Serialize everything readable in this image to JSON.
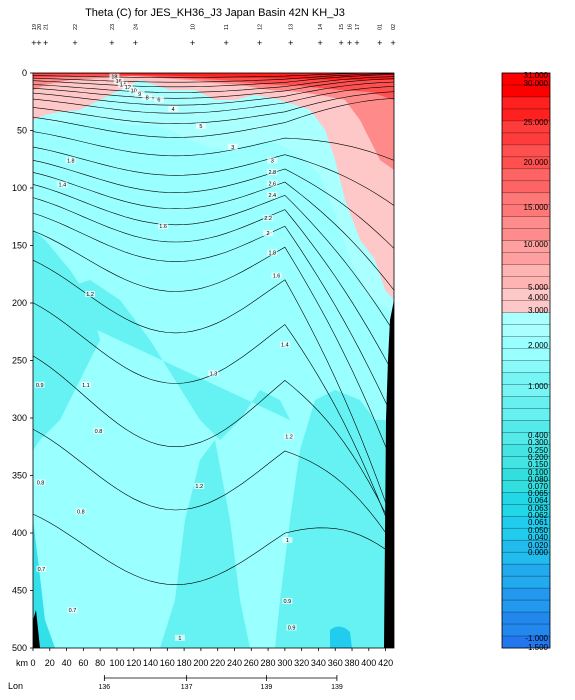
{
  "chart_data": {
    "type": "heatmap",
    "title": "Theta (C) for JES_KH36_J3 Japan Basin 42N KH_J3",
    "xlabel": "km",
    "x2label": "Lon",
    "ylim": [
      0,
      500
    ],
    "xlim": [
      0,
      430
    ],
    "yticks": [
      0,
      50,
      100,
      150,
      200,
      250,
      300,
      350,
      400,
      450,
      500
    ],
    "xticks": [
      0,
      20,
      40,
      60,
      80,
      100,
      120,
      140,
      160,
      180,
      200,
      220,
      240,
      260,
      280,
      300,
      320,
      340,
      360,
      380,
      400,
      420
    ],
    "lon_ticks": [
      {
        "km": 85,
        "label": "136"
      },
      {
        "km": 183,
        "label": "137"
      },
      {
        "km": 278,
        "label": "139"
      },
      {
        "km": 362,
        "label": "139"
      }
    ],
    "stations": [
      {
        "km": 1,
        "label": "19"
      },
      {
        "km": 7,
        "label": "20"
      },
      {
        "km": 15,
        "label": "21"
      },
      {
        "km": 50,
        "label": "22"
      },
      {
        "km": 94,
        "label": "23"
      },
      {
        "km": 122,
        "label": "24"
      },
      {
        "km": 190,
        "label": "10"
      },
      {
        "km": 230,
        "label": "11"
      },
      {
        "km": 270,
        "label": "12"
      },
      {
        "km": 307,
        "label": "13"
      },
      {
        "km": 342,
        "label": "14"
      },
      {
        "km": 367,
        "label": "15"
      },
      {
        "km": 377,
        "label": "16"
      },
      {
        "km": 386,
        "label": "17"
      },
      {
        "km": 413,
        "label": "01"
      },
      {
        "km": 429,
        "label": "02"
      }
    ],
    "colorbar": {
      "labels": [
        "31.000",
        "30.000",
        "25.000",
        "20.000",
        "15.000",
        "10.000",
        "5.000",
        "4.000",
        "3.000",
        "2.000",
        "1.000",
        "0.400",
        "0.300",
        "0.250",
        "0.200",
        "0.150",
        "0.100",
        "0.080",
        "0.070",
        "0.065",
        "0.064",
        "0.063",
        "0.062",
        "0.061",
        "0.050",
        "0.040",
        "0.020",
        "0.000",
        "-1.000",
        "-1.500"
      ]
    },
    "contour_labels": [
      {
        "km": 97,
        "depth": 4,
        "label": "18"
      },
      {
        "km": 102,
        "depth": 8,
        "label": "16"
      },
      {
        "km": 107,
        "depth": 11,
        "label": "14"
      },
      {
        "km": 113,
        "depth": 13,
        "label": "12"
      },
      {
        "km": 120,
        "depth": 16,
        "label": "10"
      },
      {
        "km": 127,
        "depth": 19,
        "label": "9"
      },
      {
        "km": 136,
        "depth": 22,
        "label": "8"
      },
      {
        "km": 150,
        "depth": 24,
        "label": "6"
      },
      {
        "km": 167,
        "depth": 32,
        "label": "4"
      },
      {
        "km": 200,
        "depth": 47,
        "label": "5"
      },
      {
        "km": 238,
        "depth": 65,
        "label": "3"
      },
      {
        "km": 285,
        "depth": 77,
        "label": "3"
      },
      {
        "km": 285,
        "depth": 87,
        "label": "2.8"
      },
      {
        "km": 285,
        "depth": 97,
        "label": "2.6"
      },
      {
        "km": 285,
        "depth": 107,
        "label": "2.4"
      },
      {
        "km": 280,
        "depth": 127,
        "label": "2.2"
      },
      {
        "km": 280,
        "depth": 140,
        "label": "2"
      },
      {
        "km": 285,
        "depth": 157,
        "label": "1.8"
      },
      {
        "km": 290,
        "depth": 177,
        "label": "1.6"
      },
      {
        "km": 300,
        "depth": 237,
        "label": "1.4"
      },
      {
        "km": 305,
        "depth": 317,
        "label": "1.2"
      },
      {
        "km": 303,
        "depth": 407,
        "label": "1"
      },
      {
        "km": 303,
        "depth": 460,
        "label": "0.9"
      },
      {
        "km": 308,
        "depth": 483,
        "label": "0.9"
      },
      {
        "km": 45,
        "depth": 77,
        "label": "1.8"
      },
      {
        "km": 35,
        "depth": 98,
        "label": "1.4"
      },
      {
        "km": 155,
        "depth": 134,
        "label": "1.6"
      },
      {
        "km": 68,
        "depth": 193,
        "label": "1.2"
      },
      {
        "km": 215,
        "depth": 262,
        "label": "1.3"
      },
      {
        "km": 63,
        "depth": 272,
        "label": "1.1"
      },
      {
        "km": 8,
        "depth": 272,
        "label": "0.9"
      },
      {
        "km": 78,
        "depth": 312,
        "label": "0.8"
      },
      {
        "km": 9,
        "depth": 357,
        "label": "0.8"
      },
      {
        "km": 57,
        "depth": 382,
        "label": "0.8"
      },
      {
        "km": 10,
        "depth": 432,
        "label": "0.7"
      },
      {
        "km": 47,
        "depth": 468,
        "label": "0.7"
      },
      {
        "km": 198,
        "depth": 360,
        "label": "1.2"
      },
      {
        "km": 175,
        "depth": 492,
        "label": "1"
      }
    ]
  }
}
